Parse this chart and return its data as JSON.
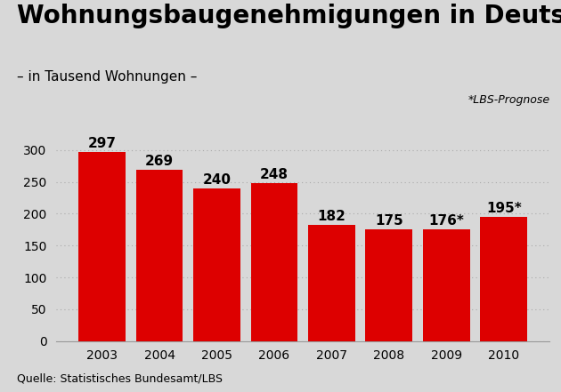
{
  "title": "Wohnungsbaugenehmigungen in Deutschland",
  "subtitle": "– in Tausend Wohnungen –",
  "prognose_note": "*LBS-Prognose",
  "source": "Quelle: Statistisches Bundesamt/LBS",
  "categories": [
    "2003",
    "2004",
    "2005",
    "2006",
    "2007",
    "2008",
    "2009",
    "2010"
  ],
  "values": [
    297,
    269,
    240,
    248,
    182,
    175,
    176,
    195
  ],
  "labels": [
    "297",
    "269",
    "240",
    "248",
    "182",
    "175",
    "176*",
    "195*"
  ],
  "bar_color": "#dd0000",
  "background_color": "#d8d8d8",
  "plot_bg_color": "#d8d8d8",
  "ylim": [
    0,
    320
  ],
  "yticks": [
    0,
    50,
    100,
    150,
    200,
    250,
    300
  ],
  "grid_color": "#aaaaaa",
  "title_fontsize": 20,
  "subtitle_fontsize": 11,
  "label_fontsize": 11,
  "tick_fontsize": 10,
  "source_fontsize": 9,
  "prognose_fontsize": 9
}
